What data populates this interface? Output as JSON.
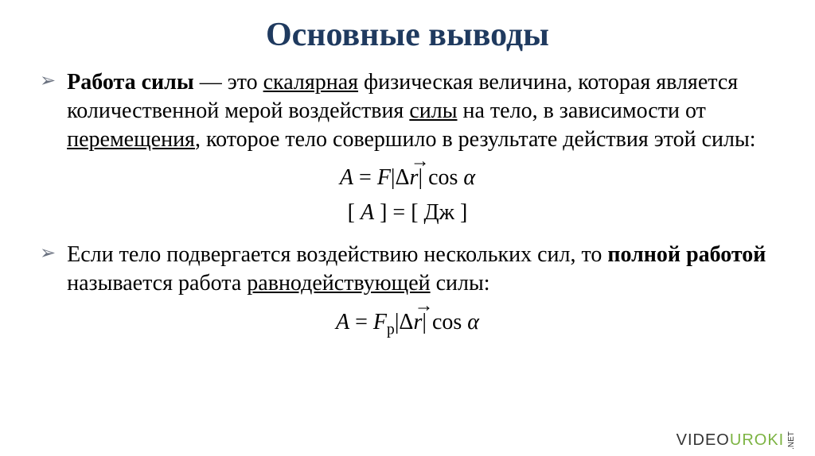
{
  "title": {
    "text": "Основные выводы",
    "color": "#1f3a5f",
    "fontsize": 42
  },
  "bullets": [
    {
      "marker": "➢",
      "marker_color": "#6b7280",
      "segments": [
        {
          "text": "Работа силы",
          "bold": true
        },
        {
          "text": " — это "
        },
        {
          "text": "скалярная",
          "underline": true
        },
        {
          "text": " физическая величина, которая является количественной мерой воздействия "
        },
        {
          "text": "силы",
          "underline": true
        },
        {
          "text": " на тело, в зависимости от "
        },
        {
          "text": "перемещения",
          "underline": true
        },
        {
          "text": ", которое тело совершило в результате действия этой силы:"
        }
      ]
    },
    {
      "marker": "➢",
      "marker_color": "#6b7280",
      "segments": [
        {
          "text": "Если тело подвергается воздействию нескольких сил, то "
        },
        {
          "text": "полной работой",
          "bold": true
        },
        {
          "text": " называется работа "
        },
        {
          "text": "равнодействующей",
          "underline": true
        },
        {
          "text": " силы:"
        }
      ]
    }
  ],
  "formulas": {
    "block1": {
      "line1": {
        "A": "A",
        "eq": " = ",
        "F": "F",
        "abs_open": "|",
        "delta": "Δ",
        "r": "r",
        "abs_close": "| ",
        "cos": "cos ",
        "alpha": "α"
      },
      "line2": {
        "open": "[ ",
        "A": "A",
        "mid": " ] = [ ",
        "unit": "Дж",
        "close": " ]"
      }
    },
    "block2": {
      "line1": {
        "A": "A",
        "eq": " = ",
        "F": "F",
        "sub": "р",
        "abs_open": "|",
        "delta": "Δ",
        "r": "r",
        "abs_close": "| ",
        "cos": "cos ",
        "alpha": "α"
      }
    }
  },
  "watermark": {
    "part1": "VIDEO",
    "part2": "UROKI",
    "net": ".NET"
  },
  "colors": {
    "background": "#ffffff",
    "text": "#000000",
    "title": "#1f3a5f",
    "bullet_marker": "#6b7280",
    "wm_dark": "#333333",
    "wm_green": "#7cb342"
  }
}
